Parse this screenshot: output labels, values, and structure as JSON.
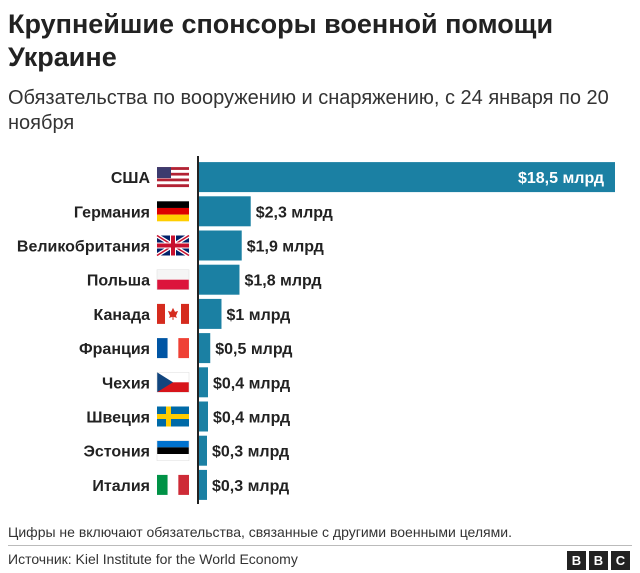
{
  "title": "Крупнейшие спонсоры военной помощи Украине",
  "subtitle": "Обязательства по вооружению и снаряжению, с 24 января по 20 ноября",
  "footnote": "Цифры не включают обязательства, связанные с другими военными целями.",
  "source": "Источник: Kiel Institute for the World Economy",
  "logo": [
    "B",
    "B",
    "C"
  ],
  "colors": {
    "bar": "#1b80a3",
    "axis": "#222222"
  },
  "chart_data": {
    "type": "bar",
    "orientation": "horizontal",
    "categories": [
      "США",
      "Германия",
      "Великобритания",
      "Польша",
      "Канада",
      "Франция",
      "Чехия",
      "Швеция",
      "Эстония",
      "Италия"
    ],
    "values": [
      18.5,
      2.3,
      1.9,
      1.8,
      1.0,
      0.5,
      0.4,
      0.4,
      0.3,
      0.3
    ],
    "value_labels": [
      "$18,5 млрд",
      "$2,3 млрд",
      "$1,9 млрд",
      "$1,8 млрд",
      "$1 млрд",
      "$0,5 млрд",
      "$0,4 млрд",
      "$0,4 млрд",
      "$0,3 млрд",
      "$0,3 млрд"
    ],
    "flags": [
      "us-flag-icon",
      "germany-flag-icon",
      "uk-flag-icon",
      "poland-flag-icon",
      "canada-flag-icon",
      "france-flag-icon",
      "czech-flag-icon",
      "sweden-flag-icon",
      "estonia-flag-icon",
      "italy-flag-icon"
    ],
    "xlim": [
      0,
      18.5
    ],
    "grid": false,
    "legend": "none"
  }
}
